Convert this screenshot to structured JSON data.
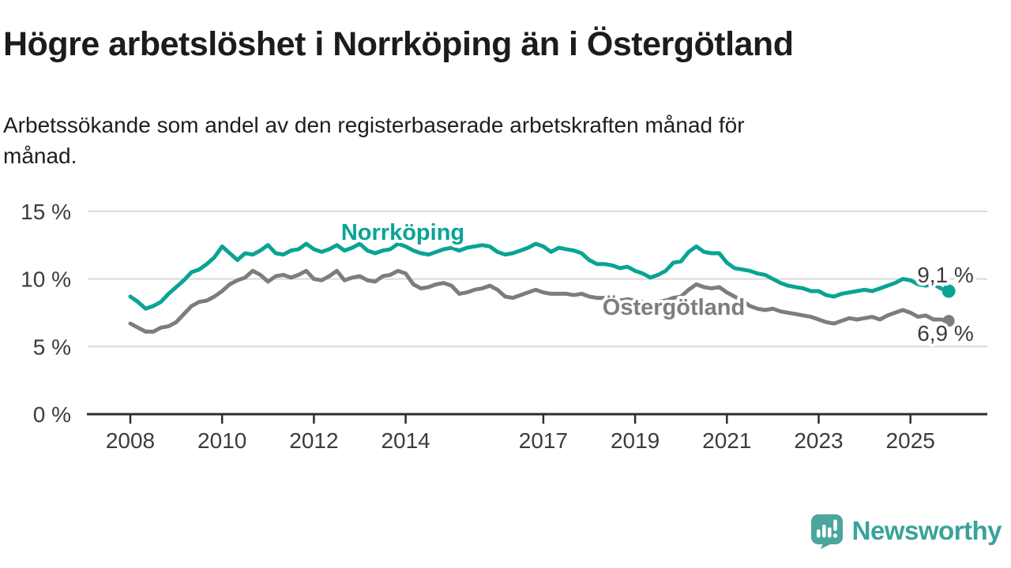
{
  "header": {
    "title": "Högre arbetslöshet i Norrköping än i Östergötland",
    "subtitle_lines": [
      "Arbetssökande som andel av den registerbaserade arbetskraften månad för",
      "månad."
    ]
  },
  "chart_data": {
    "type": "line",
    "title": "Högre arbetslöshet i Norrköping än i Östergötland",
    "subtitle": "Arbetssökande som andel av den registerbaserade arbetskraften månad för månad.",
    "x_start_year": 2008,
    "x_step_years": 0.1666667,
    "x_end_year": 2025.83,
    "ylim": [
      0,
      15
    ],
    "grid": "horizontal",
    "legend_position": "inline-labels",
    "x_ticks": [
      {
        "year": 2008,
        "label": "2008"
      },
      {
        "year": 2010,
        "label": "2010"
      },
      {
        "year": 2012,
        "label": "2012"
      },
      {
        "year": 2014,
        "label": "2014"
      },
      {
        "year": 2017,
        "label": "2017"
      },
      {
        "year": 2019,
        "label": "2019"
      },
      {
        "year": 2021,
        "label": "2021"
      },
      {
        "year": 2023,
        "label": "2023"
      },
      {
        "year": 2025,
        "label": "2025"
      }
    ],
    "y_ticks": [
      {
        "value": 0,
        "label": "0 %"
      },
      {
        "value": 5,
        "label": "5 %"
      },
      {
        "value": 10,
        "label": "10 %"
      },
      {
        "value": 15,
        "label": "15 %"
      }
    ],
    "series": [
      {
        "name": "Norrköping",
        "color": "#0aa396",
        "end_label": "9,1 %",
        "last_value": 9.1,
        "values": [
          8.7,
          8.3,
          7.8,
          8.0,
          8.3,
          8.9,
          9.4,
          9.9,
          10.5,
          10.7,
          11.1,
          11.6,
          12.4,
          11.9,
          11.4,
          11.9,
          11.8,
          12.1,
          12.5,
          11.9,
          11.8,
          12.1,
          12.2,
          12.6,
          12.2,
          12.0,
          12.2,
          12.5,
          12.1,
          12.3,
          12.6,
          12.1,
          11.9,
          12.1,
          12.2,
          12.6,
          12.4,
          12.1,
          11.9,
          11.8,
          12.0,
          12.2,
          12.3,
          12.1,
          12.3,
          12.4,
          12.5,
          12.4,
          12.0,
          11.8,
          11.9,
          12.1,
          12.3,
          12.6,
          12.4,
          12.0,
          12.3,
          12.2,
          12.1,
          11.9,
          11.4,
          11.1,
          11.1,
          11.0,
          10.8,
          10.9,
          10.6,
          10.4,
          10.1,
          10.3,
          10.6,
          11.2,
          11.3,
          12.0,
          12.4,
          12.0,
          11.9,
          11.9,
          11.2,
          10.8,
          10.7,
          10.6,
          10.4,
          10.3,
          10.0,
          9.7,
          9.5,
          9.4,
          9.3,
          9.1,
          9.1,
          8.8,
          8.7,
          8.9,
          9.0,
          9.1,
          9.2,
          9.1,
          9.3,
          9.5,
          9.7,
          10.0,
          9.9,
          9.6,
          9.5,
          9.6,
          9.3,
          9.1
        ]
      },
      {
        "name": "Östergötland",
        "color": "#7d7d7d",
        "end_label": "6,9 %",
        "last_value": 6.9,
        "values": [
          6.7,
          6.4,
          6.1,
          6.1,
          6.4,
          6.5,
          6.8,
          7.4,
          8.0,
          8.3,
          8.4,
          8.7,
          9.1,
          9.6,
          9.9,
          10.1,
          10.6,
          10.3,
          9.8,
          10.2,
          10.3,
          10.1,
          10.3,
          10.6,
          10.0,
          9.9,
          10.2,
          10.6,
          9.9,
          10.1,
          10.2,
          9.9,
          9.8,
          10.2,
          10.3,
          10.6,
          10.4,
          9.6,
          9.3,
          9.4,
          9.6,
          9.7,
          9.5,
          8.9,
          9.0,
          9.2,
          9.3,
          9.5,
          9.2,
          8.7,
          8.6,
          8.8,
          9.0,
          9.2,
          9.0,
          8.9,
          8.9,
          8.9,
          8.8,
          8.9,
          8.7,
          8.6,
          8.6,
          8.5,
          8.4,
          8.5,
          8.4,
          8.3,
          8.2,
          8.3,
          8.4,
          8.6,
          8.7,
          9.2,
          9.6,
          9.4,
          9.3,
          9.4,
          9.0,
          8.7,
          8.4,
          8.0,
          7.8,
          7.7,
          7.8,
          7.6,
          7.5,
          7.4,
          7.3,
          7.2,
          7.0,
          6.8,
          6.7,
          6.9,
          7.1,
          7.0,
          7.1,
          7.2,
          7.0,
          7.3,
          7.5,
          7.7,
          7.5,
          7.2,
          7.3,
          7.0,
          7.0,
          6.9
        ]
      }
    ]
  },
  "logo": {
    "name": "Newsworthy",
    "icon": "speech-bubble-bar-chart-icon",
    "color": "#3aa29a"
  },
  "colors": {
    "norrkoping_line": "#0aa396",
    "ostergotland_line": "#7d7d7d",
    "axis": "#2d2d2d",
    "gridline": "#d9d9d9",
    "tick_text": "#3c3c3c",
    "title_text": "#1c1c1c"
  }
}
